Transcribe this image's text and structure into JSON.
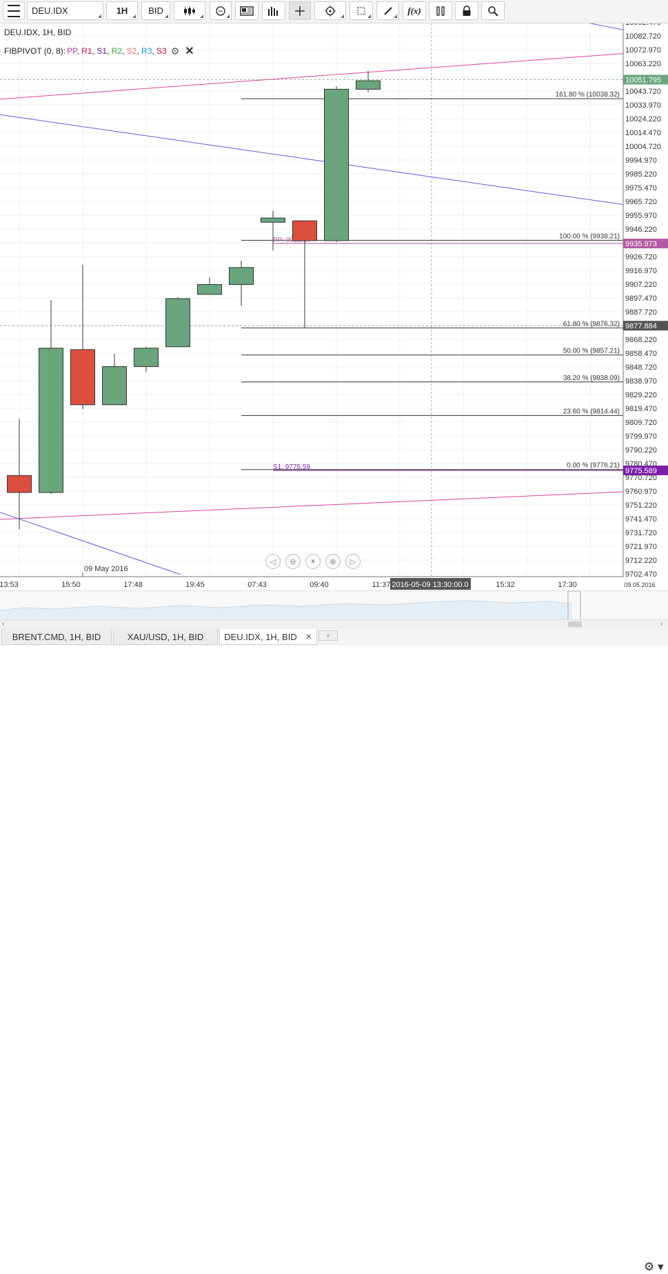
{
  "toolbar": {
    "symbol": "DEU.IDX",
    "period": "1H",
    "side": "BID",
    "fx_label": "f(x)"
  },
  "legend": {
    "line1": "DEU.IDX, 1H, BID",
    "indicator_prefix": "FIBPIVOT (0, 8): ",
    "pivots": [
      {
        "label": "PP",
        "color": "#b03aaa"
      },
      {
        "label": "R1",
        "color": "#c2185b"
      },
      {
        "label": "S1",
        "color": "#6a1b9a"
      },
      {
        "label": "R2",
        "color": "#43a047"
      },
      {
        "label": "S2",
        "color": "#e57373"
      },
      {
        "label": "R3",
        "color": "#1e88e5"
      },
      {
        "label": "S3",
        "color": "#ad1457"
      }
    ]
  },
  "chart_data": {
    "type": "candlestick",
    "symbol": "DEU.IDX",
    "timeframe": "1H",
    "y_ticks": [
      "10092.470",
      "10082.720",
      "10072.970",
      "10063.220",
      "10053.470",
      "10043.720",
      "10033.970",
      "10024.220",
      "10014.470",
      "10004.720",
      "9994.970",
      "9985.220",
      "9975.470",
      "9965.720",
      "9955.970",
      "9946.220",
      "9936.470",
      "9926.720",
      "9916.970",
      "9907.220",
      "9897.470",
      "9887.720",
      "9877.970",
      "9868.220",
      "9858.470",
      "9848.720",
      "9838.970",
      "9829.220",
      "9819.470",
      "9809.720",
      "9799.970",
      "9790.220",
      "9780.470",
      "9770.720",
      "9760.970",
      "9751.220",
      "9741.470",
      "9731.720",
      "9721.970",
      "9712.220",
      "9702.470"
    ],
    "x_labels": [
      "13:53",
      "15:50",
      "17:48",
      "19:45",
      "07:43",
      "09:40",
      "11:37",
      "15:32",
      "17:30",
      "09.05.2016"
    ],
    "date_marker": "09 May 2016",
    "crosshair_time": "2016-05-09 13:30:00.0",
    "price_badges": [
      {
        "text": "10051.795",
        "price": 10051.795,
        "color": "#6aa57e"
      },
      {
        "text": "9935.973",
        "price": 9935.973,
        "color": "#b35aa5"
      },
      {
        "text": "9877.884",
        "price": 9877.884,
        "color": "#555555"
      },
      {
        "text": "9775.589",
        "price": 9775.589,
        "color": "#7a1fa8"
      }
    ],
    "candles": [
      {
        "open": 9772,
        "high": 9812,
        "low": 9734,
        "close": 9760
      },
      {
        "open": 9760,
        "high": 9896,
        "low": 9759,
        "close": 9862
      },
      {
        "open": 9861,
        "high": 9921,
        "low": 9819,
        "close": 9822
      },
      {
        "open": 9822,
        "high": 9858,
        "low": 9822,
        "close": 9849
      },
      {
        "open": 9849,
        "high": 9863,
        "low": 9845,
        "close": 9862
      },
      {
        "open": 9863,
        "high": 9898,
        "low": 9863,
        "close": 9897
      },
      {
        "open": 9900,
        "high": 9912,
        "low": 9900,
        "close": 9907
      },
      {
        "open": 9907,
        "high": 9924,
        "low": 9892,
        "close": 9919
      },
      {
        "open": 9951,
        "high": 9959,
        "low": 9931,
        "close": 9954
      },
      {
        "open": 9952,
        "high": 9952,
        "low": 9876,
        "close": 9938
      },
      {
        "open": 9938,
        "high": 10047,
        "low": 9937,
        "close": 10045
      },
      {
        "open": 10045,
        "high": 10058,
        "low": 10043,
        "close": 10051
      }
    ],
    "fib_levels": [
      {
        "label": "161.80 % (10038.32)",
        "price": 10038.32
      },
      {
        "label": "100.00 % (9938.21)",
        "price": 9938.21
      },
      {
        "label": "61.80 % (9876.32)",
        "price": 9876.32
      },
      {
        "label": "50.00 % (9857.21)",
        "price": 9857.21
      },
      {
        "label": "38.20 % (9838.09)",
        "price": 9838.09
      },
      {
        "label": "23.60 % (9814.44)",
        "price": 9814.44
      },
      {
        "label": "0.00 % (9776.21)",
        "price": 9776.21
      }
    ],
    "pivot_labels": [
      {
        "label": "PP: 9935.97",
        "price": 9935.97,
        "color": "#b35aa5"
      },
      {
        "label": "S1: 9775.59",
        "price": 9775.59,
        "color": "#7a1fa8"
      }
    ]
  },
  "tabs": [
    {
      "label": "BRENT.CMD, 1H, BID",
      "active": false
    },
    {
      "label": "XAU/USD, 1H, BID",
      "active": false
    },
    {
      "label": "DEU.IDX, 1H, BID",
      "active": true,
      "close": "✕"
    }
  ],
  "add_tab": "+",
  "colors": {
    "up": "#6aa57e",
    "down": "#dc4f3f",
    "trend_pink": "#e0409a",
    "trend_blue": "#5c5cd6"
  }
}
